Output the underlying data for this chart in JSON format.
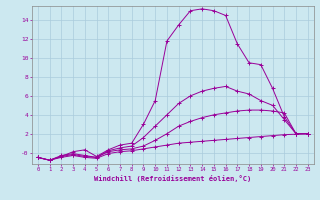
{
  "xlabel": "Windchill (Refroidissement éolien,°C)",
  "background_color": "#cce8f0",
  "grid_color": "#aaccdd",
  "line_color": "#990099",
  "xlim": [
    -0.5,
    23.5
  ],
  "ylim": [
    -1.2,
    15.5
  ],
  "xticks": [
    0,
    1,
    2,
    3,
    4,
    5,
    6,
    7,
    8,
    9,
    10,
    11,
    12,
    13,
    14,
    15,
    16,
    17,
    18,
    19,
    20,
    21,
    22,
    23
  ],
  "yticks": [
    0,
    2,
    4,
    6,
    8,
    10,
    12,
    14
  ],
  "ytick_labels": [
    "-0",
    "2",
    "4",
    "6",
    "8",
    "10",
    "12",
    "14"
  ],
  "lines": [
    {
      "x": [
        0,
        1,
        2,
        3,
        4,
        5,
        6,
        7,
        8,
        9,
        10,
        11,
        12,
        13,
        14,
        15,
        16,
        17,
        18,
        19,
        20,
        21,
        22,
        23
      ],
      "y": [
        -0.5,
        -0.8,
        -0.5,
        -0.3,
        -0.5,
        -0.6,
        -0.1,
        0.1,
        0.2,
        0.4,
        0.6,
        0.8,
        1.0,
        1.1,
        1.2,
        1.3,
        1.4,
        1.5,
        1.6,
        1.7,
        1.8,
        1.9,
        1.95,
        2.0
      ]
    },
    {
      "x": [
        0,
        1,
        2,
        3,
        4,
        5,
        6,
        7,
        8,
        9,
        10,
        11,
        12,
        13,
        14,
        15,
        16,
        17,
        18,
        19,
        20,
        21,
        22,
        23
      ],
      "y": [
        -0.5,
        -0.8,
        -0.4,
        -0.2,
        -0.4,
        -0.5,
        0.1,
        0.3,
        0.4,
        0.7,
        1.3,
        2.0,
        2.8,
        3.3,
        3.7,
        4.0,
        4.2,
        4.4,
        4.5,
        4.5,
        4.4,
        4.2,
        2.0,
        2.0
      ]
    },
    {
      "x": [
        0,
        1,
        2,
        3,
        4,
        5,
        6,
        7,
        8,
        9,
        10,
        11,
        12,
        13,
        14,
        15,
        16,
        17,
        18,
        19,
        20,
        21,
        22,
        23
      ],
      "y": [
        -0.5,
        -0.8,
        -0.3,
        -0.1,
        -0.3,
        -0.5,
        0.2,
        0.5,
        0.7,
        1.6,
        2.8,
        4.0,
        5.2,
        6.0,
        6.5,
        6.8,
        7.0,
        6.5,
        6.2,
        5.5,
        5.0,
        3.5,
        2.0,
        2.0
      ]
    },
    {
      "x": [
        0,
        1,
        2,
        3,
        4,
        5,
        6,
        7,
        8,
        9,
        10,
        11,
        12,
        13,
        14,
        15,
        16,
        17,
        18,
        19,
        20,
        21,
        22,
        23
      ],
      "y": [
        -0.5,
        -0.8,
        -0.4,
        0.1,
        0.3,
        -0.4,
        0.3,
        0.8,
        1.0,
        3.0,
        5.5,
        11.8,
        13.5,
        15.0,
        15.2,
        15.0,
        14.5,
        11.5,
        9.5,
        9.3,
        6.8,
        3.8,
        2.0,
        2.0
      ]
    }
  ]
}
